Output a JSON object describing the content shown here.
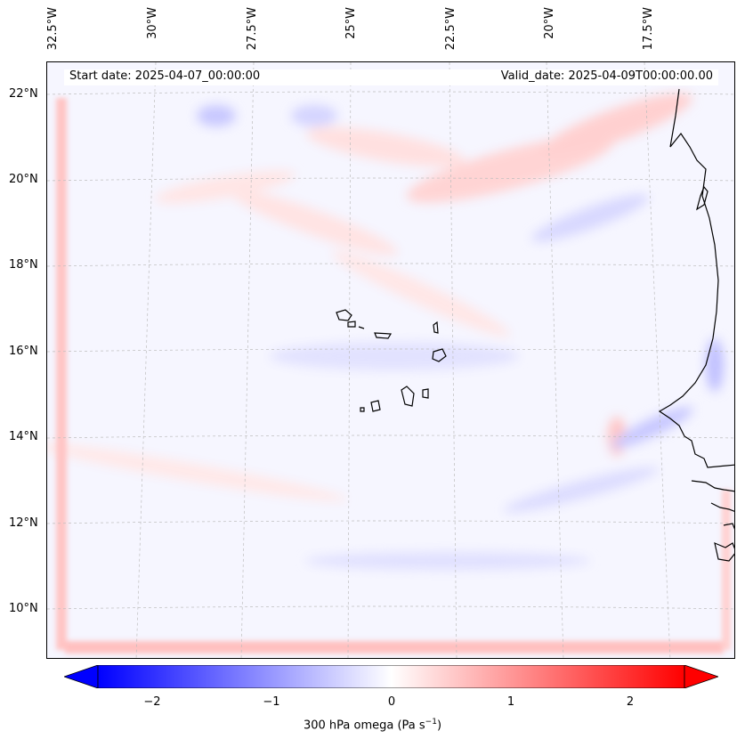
{
  "map": {
    "type": "contour-map",
    "variable": "300 hPa omega",
    "header": {
      "start": "Start date: 2025-04-07_00:00:00",
      "valid": "Valid_date: 2025-04-09T00:00:00.00"
    },
    "lon_labels": [
      "32.5°W",
      "30°W",
      "27.5°W",
      "25°W",
      "22.5°W",
      "20°W",
      "17.5°W"
    ],
    "lat_labels": [
      "22°N",
      "20°N",
      "18°N",
      "16°N",
      "14°N",
      "12°N",
      "10°N"
    ],
    "colors": {
      "neg": "#0000ff",
      "zero": "#ffffff",
      "pos": "#ff0000",
      "coast": "#000000",
      "grid": "#b0b0b0"
    }
  },
  "chart_data": {
    "type": "heatmap",
    "title": "",
    "colorbar": {
      "label": "300 hPa omega (Pa s",
      "label_sup": "−1",
      "label_end": ")",
      "range": [
        -2.6,
        2.6
      ],
      "ticks": [
        "−2",
        "−1",
        "0",
        "1",
        "2"
      ],
      "tick_values": [
        -2,
        -1,
        0,
        1,
        2
      ],
      "extend": "both"
    },
    "features": [
      "mostly near-zero omega over the ocean",
      "weak positive (red) streaks in the northern half",
      "weak negative (blue) patches scattered",
      "stronger positive along the southern and western boundary"
    ]
  }
}
